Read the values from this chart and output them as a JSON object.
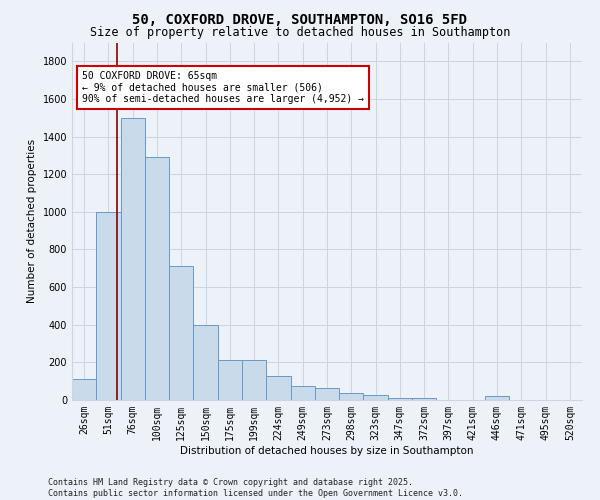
{
  "title": "50, COXFORD DROVE, SOUTHAMPTON, SO16 5FD",
  "subtitle": "Size of property relative to detached houses in Southampton",
  "xlabel": "Distribution of detached houses by size in Southampton",
  "ylabel": "Number of detached properties",
  "categories": [
    "26sqm",
    "51sqm",
    "76sqm",
    "100sqm",
    "125sqm",
    "150sqm",
    "175sqm",
    "199sqm",
    "224sqm",
    "249sqm",
    "273sqm",
    "298sqm",
    "323sqm",
    "347sqm",
    "372sqm",
    "397sqm",
    "421sqm",
    "446sqm",
    "471sqm",
    "495sqm",
    "520sqm"
  ],
  "values": [
    110,
    1000,
    1500,
    1290,
    710,
    400,
    215,
    215,
    130,
    75,
    65,
    35,
    25,
    10,
    10,
    0,
    0,
    20,
    0,
    0,
    0
  ],
  "bar_color": "#c9daea",
  "bar_edge_color": "#6699cc",
  "grid_color": "#ccd5e0",
  "background_color": "#edf2f8",
  "vline_x": 1.35,
  "vline_color": "#880000",
  "annotation_text": "50 COXFORD DROVE: 65sqm\n← 9% of detached houses are smaller (506)\n90% of semi-detached houses are larger (4,952) →",
  "annotation_box_color": "#ffffff",
  "annotation_box_edge": "#cc0000",
  "ylim": [
    0,
    1900
  ],
  "yticks": [
    0,
    200,
    400,
    600,
    800,
    1000,
    1200,
    1400,
    1600,
    1800
  ],
  "footer_line1": "Contains HM Land Registry data © Crown copyright and database right 2025.",
  "footer_line2": "Contains public sector information licensed under the Open Government Licence v3.0.",
  "title_fontsize": 10,
  "subtitle_fontsize": 8.5,
  "axis_label_fontsize": 7.5,
  "tick_fontsize": 7,
  "annotation_fontsize": 7,
  "footer_fontsize": 6
}
